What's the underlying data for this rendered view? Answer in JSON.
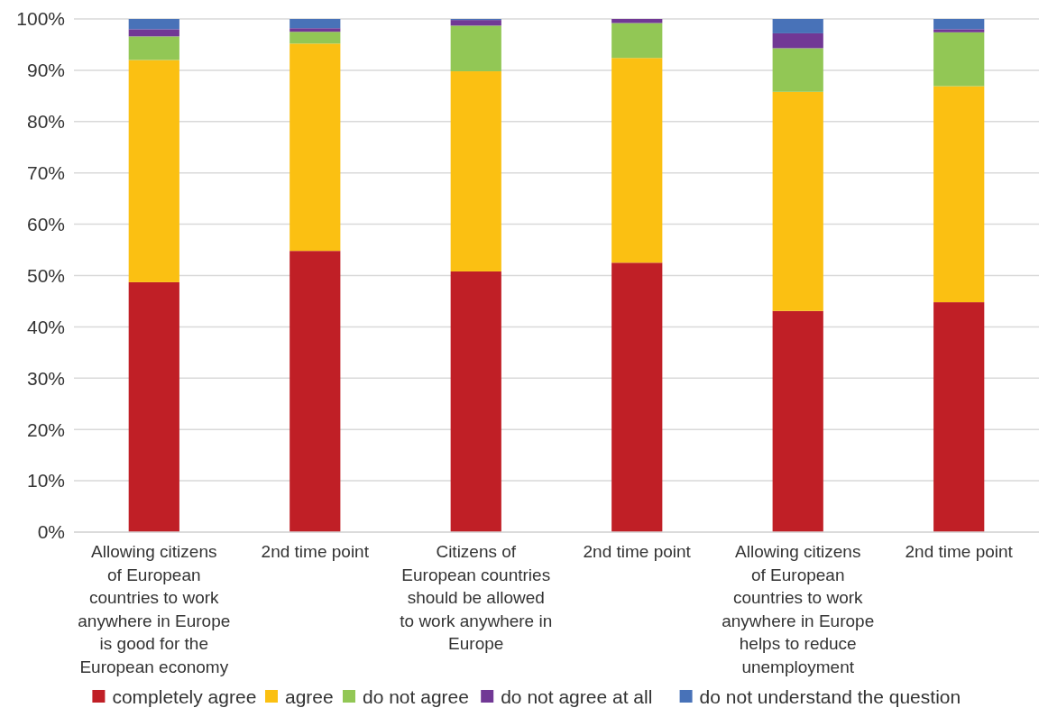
{
  "chart_data": {
    "type": "bar",
    "stacked": true,
    "categories": [
      "Allowing citizens of European countries to work anywhere in Europe is good for the European economy",
      "2nd time point",
      "Citizens of European countries should be allowed to work anywhere in Europe",
      "2nd time point",
      "Allowing citizens of European countries to work anywhere in Europe helps to reduce unemployment",
      "2nd time point"
    ],
    "series": [
      {
        "name": "completely agree",
        "color": "#c01f26",
        "values": [
          48.7,
          54.8,
          50.8,
          52.5,
          43.1,
          44.8
        ]
      },
      {
        "name": "agree",
        "color": "#fbc012",
        "values": [
          43.3,
          40.4,
          39.0,
          39.9,
          42.7,
          42.1
        ]
      },
      {
        "name": "do not agree",
        "color": "#92c755",
        "values": [
          4.6,
          2.3,
          8.9,
          6.8,
          8.5,
          10.5
        ]
      },
      {
        "name": "do not agree at all",
        "color": "#713895",
        "values": [
          1.4,
          0.7,
          1.1,
          0.8,
          2.9,
          0.6
        ]
      },
      {
        "name": "do not understand the question",
        "color": "#4872b8",
        "values": [
          2.0,
          1.8,
          0.2,
          0,
          2.8,
          2.0
        ]
      }
    ],
    "ylim": [
      0,
      100
    ],
    "yticks": [
      {
        "value": 0,
        "label": "0%"
      },
      {
        "value": 10,
        "label": "10%"
      },
      {
        "value": 20,
        "label": "20%"
      },
      {
        "value": 30,
        "label": "30%"
      },
      {
        "value": 40,
        "label": "40%"
      },
      {
        "value": 50,
        "label": "50%"
      },
      {
        "value": 60,
        "label": "60%"
      },
      {
        "value": 70,
        "label": "70%"
      },
      {
        "value": 80,
        "label": "80%"
      },
      {
        "value": 90,
        "label": "90%"
      },
      {
        "value": 100,
        "label": "100%"
      }
    ],
    "grid": "y",
    "legend": "bottom"
  }
}
